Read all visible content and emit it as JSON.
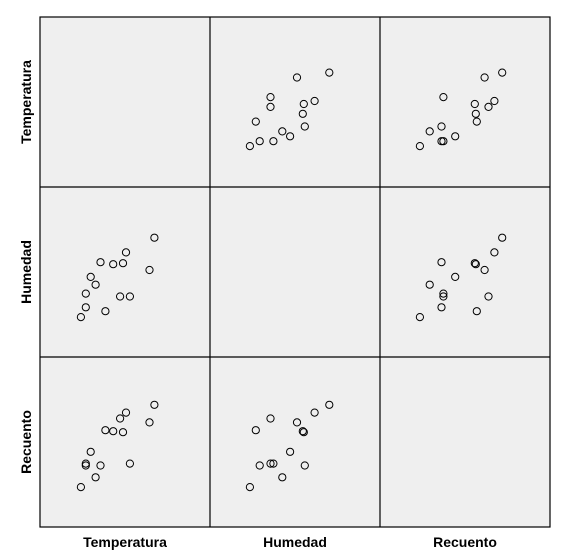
{
  "chart_data": {
    "type": "scatter",
    "variables": [
      "Temperatura",
      "Humedad",
      "Recuento"
    ],
    "colors": {
      "panel_bg": "#efefef",
      "frame": "#000000",
      "marker": "#000000"
    },
    "marker": "open-circle",
    "grid": false,
    "observations": {
      "Temperatura": [
        0.05,
        0.1,
        0.1,
        0.15,
        0.2,
        0.25,
        0.3,
        0.38,
        0.45,
        0.48,
        0.51,
        0.55,
        0.75,
        0.8
      ],
      "Humedad": [
        0.04,
        0.14,
        0.28,
        0.45,
        0.37,
        0.6,
        0.1,
        0.58,
        0.25,
        0.59,
        0.7,
        0.25,
        0.52,
        0.85
      ],
      "Recuento": [
        0.04,
        0.26,
        0.28,
        0.4,
        0.14,
        0.26,
        0.62,
        0.61,
        0.74,
        0.6,
        0.8,
        0.28,
        0.7,
        0.88
      ]
    },
    "panels": [
      {
        "id": "temperatura-vs-temperatura",
        "row": "Temperatura",
        "col": "Temperatura",
        "scatter": false
      },
      {
        "id": "temperatura-vs-humedad",
        "row": "Temperatura",
        "col": "Humedad",
        "scatter": true
      },
      {
        "id": "temperatura-vs-recuento",
        "row": "Temperatura",
        "col": "Recuento",
        "scatter": true
      },
      {
        "id": "humedad-vs-temperatura",
        "row": "Humedad",
        "col": "Temperatura",
        "scatter": true
      },
      {
        "id": "humedad-vs-humedad",
        "row": "Humedad",
        "col": "Humedad",
        "scatter": false
      },
      {
        "id": "humedad-vs-recuento",
        "row": "Humedad",
        "col": "Recuento",
        "scatter": true
      },
      {
        "id": "recuento-vs-temperatura",
        "row": "Recuento",
        "col": "Temperatura",
        "scatter": true
      },
      {
        "id": "recuento-vs-humedad",
        "row": "Recuento",
        "col": "Humedad",
        "scatter": true
      },
      {
        "id": "recuento-vs-recuento",
        "row": "Recuento",
        "col": "Recuento",
        "scatter": false
      }
    ]
  }
}
